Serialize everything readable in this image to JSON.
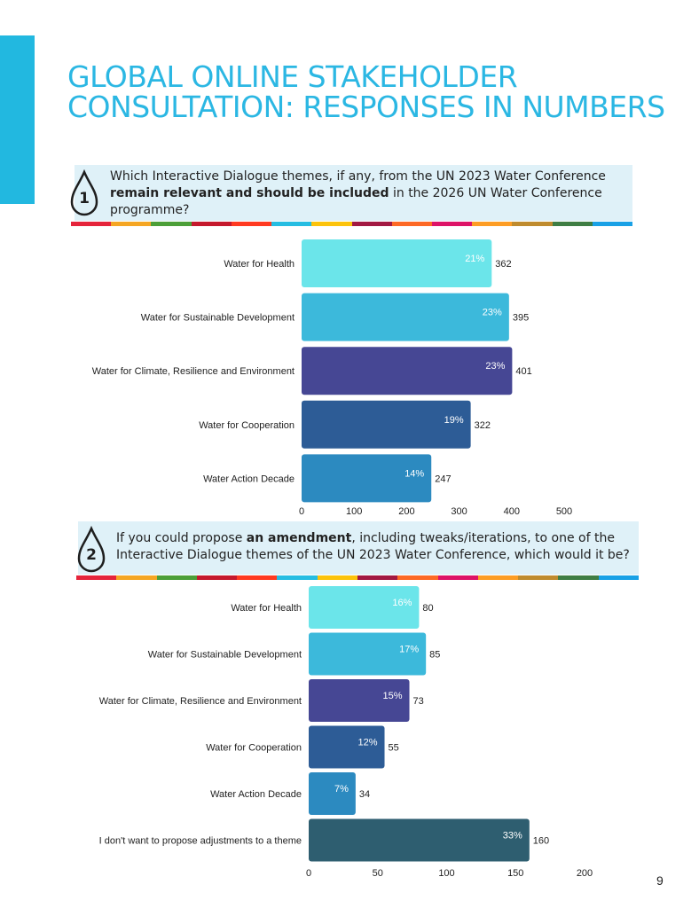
{
  "page": {
    "title": "GLOBAL ONLINE STAKEHOLDER CONSULTATION: RESPONSES IN NUMBERS",
    "page_number": "9"
  },
  "questions": [
    {
      "number": "1",
      "text_before": "Which Interactive Dialogue themes, if any, from the UN 2023 Water Conference ",
      "text_bold": "remain relevant and should be included",
      "text_after": " in the 2026 UN Water Conference programme?"
    },
    {
      "number": "2",
      "text_before": "If you could propose ",
      "text_bold": "an amendment",
      "text_after": ", including tweaks/iterations, to one of the Interactive Dialogue themes of the UN 2023 Water Conference, which would it be?"
    }
  ],
  "colors": {
    "accent": "#22b8e0",
    "title": "#2bb7e3",
    "question_bg": "#dff1f8",
    "sdg_strip": [
      "#e5243b",
      "#f5a623",
      "#4c9f38",
      "#c5192d",
      "#ff3a21",
      "#26bde2",
      "#fcc30b",
      "#a21942",
      "#fd6925",
      "#dd1367",
      "#fd9d24",
      "#bf8b2e",
      "#3f7e44",
      "#19a1e6"
    ]
  },
  "chart_data": [
    {
      "type": "bar",
      "orientation": "horizontal",
      "categories": [
        "Water for Health",
        "Water for Sustainable Development",
        "Water for Climate, Resilience and Environment",
        "Water for Cooperation",
        "Water Action Decade"
      ],
      "values": [
        362,
        395,
        401,
        322,
        247
      ],
      "percent_labels": [
        "21%",
        "23%",
        "23%",
        "19%",
        "14%"
      ],
      "bar_colors": [
        "#6be5ea",
        "#3cb9db",
        "#464794",
        "#2d5c96",
        "#2c8ac0"
      ],
      "xticks": [
        0,
        100,
        200,
        300,
        400,
        500
      ],
      "xlim": [
        0,
        500
      ],
      "title": "",
      "xlabel": "",
      "ylabel": "",
      "grid": false,
      "legend": "none"
    },
    {
      "type": "bar",
      "orientation": "horizontal",
      "categories": [
        "Water for Health",
        "Water for Sustainable Development",
        "Water for Climate, Resilience and Environment",
        "Water for Cooperation",
        "Water Action Decade",
        "I don't want to propose adjustments to a theme"
      ],
      "values": [
        80,
        85,
        73,
        55,
        34,
        160
      ],
      "percent_labels": [
        "16%",
        "17%",
        "15%",
        "12%",
        "7%",
        "33%"
      ],
      "bar_colors": [
        "#6be5ea",
        "#3cb9db",
        "#464794",
        "#2d5c96",
        "#2c8ac0",
        "#2e5e70"
      ],
      "xticks": [
        0,
        50,
        100,
        150,
        200
      ],
      "xlim": [
        0,
        200
      ],
      "title": "",
      "xlabel": "",
      "ylabel": "",
      "grid": false,
      "legend": "none"
    }
  ]
}
